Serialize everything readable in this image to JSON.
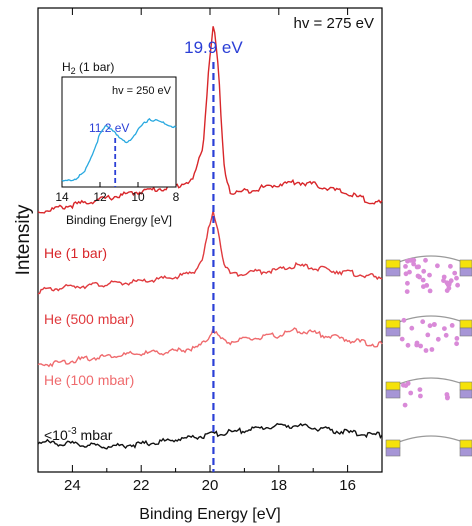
{
  "chart_data": {
    "type": "line",
    "title": "",
    "annotation_top_right": "hv = 275 eV",
    "xlabel": "Binding Energy [eV]",
    "ylabel": "Intensity",
    "xlim": [
      25,
      15
    ],
    "x_ticks": [
      "24",
      "22",
      "20",
      "18",
      "16"
    ],
    "x_tick_values": [
      24,
      22,
      20,
      18,
      16
    ],
    "reversed_x": true,
    "peak_marker": {
      "x": 19.9,
      "label": "19.9 eV",
      "color": "#2b3fd6"
    },
    "series": [
      {
        "name": "He (1 bar)",
        "color": "#d8262a",
        "x": [
          25,
          24,
          23,
          22,
          21,
          20.5,
          20.2,
          20.05,
          19.9,
          19.75,
          19.6,
          19.4,
          19,
          18,
          17.5,
          17,
          16,
          15.2
        ],
        "y": [
          0.56,
          0.575,
          0.59,
          0.605,
          0.615,
          0.63,
          0.7,
          0.86,
          0.97,
          0.86,
          0.66,
          0.6,
          0.605,
          0.62,
          0.625,
          0.62,
          0.6,
          0.58
        ]
      },
      {
        "name": "He (500 mbar)",
        "color": "#e03a3e",
        "x": [
          25,
          24,
          23,
          22,
          21,
          20.5,
          20.2,
          20.05,
          19.9,
          19.75,
          19.6,
          19.4,
          19,
          18,
          17.5,
          17,
          16,
          15.2
        ],
        "y": [
          0.39,
          0.4,
          0.405,
          0.41,
          0.42,
          0.43,
          0.46,
          0.52,
          0.56,
          0.52,
          0.45,
          0.425,
          0.43,
          0.435,
          0.445,
          0.44,
          0.43,
          0.42
        ]
      },
      {
        "name": "He (100 mbar)",
        "color": "#ef6b6e",
        "x": [
          25,
          24,
          23,
          22,
          21,
          20.3,
          20.05,
          19.9,
          19.75,
          19.5,
          19,
          18,
          17.5,
          17,
          16,
          15.2
        ],
        "y": [
          0.23,
          0.24,
          0.25,
          0.255,
          0.26,
          0.27,
          0.29,
          0.31,
          0.29,
          0.28,
          0.285,
          0.295,
          0.305,
          0.3,
          0.285,
          0.275
        ]
      },
      {
        "name": "<10<sup>-3</sup> mbar",
        "label_main": "<10",
        "label_sup": "-3",
        "label_tail": " mbar",
        "color": "#111111",
        "x": [
          25,
          24,
          23,
          22,
          21,
          20,
          19,
          18,
          17.5,
          17,
          16,
          15.2
        ],
        "y": [
          0.065,
          0.06,
          0.055,
          0.06,
          0.07,
          0.08,
          0.09,
          0.1,
          0.1,
          0.095,
          0.085,
          0.08
        ]
      }
    ],
    "inset": {
      "title_main": "H",
      "title_sub": "2",
      "title_tail": " (1 bar)",
      "annotation": "hv = 250 eV",
      "xlabel": "Binding Energy [eV]",
      "xlim": [
        14,
        8
      ],
      "x_ticks": [
        "14",
        "12",
        "10",
        "8"
      ],
      "x_tick_values": [
        14,
        12,
        10,
        8
      ],
      "peak_marker": {
        "x": 11.2,
        "label": "11.2 eV",
        "color": "#2b3fd6"
      },
      "series": {
        "color": "#29a9e0",
        "x": [
          14,
          13.6,
          13.2,
          12.8,
          12.4,
          12,
          11.7,
          11.4,
          11.2,
          11,
          10.6,
          10.2,
          9.8,
          9.4,
          9,
          8.6,
          8.2,
          8
        ],
        "y": [
          0.05,
          0.06,
          0.08,
          0.14,
          0.3,
          0.48,
          0.55,
          0.53,
          0.5,
          0.44,
          0.4,
          0.47,
          0.56,
          0.62,
          0.6,
          0.58,
          0.55,
          0.54
        ]
      }
    }
  },
  "colors": {
    "frame": "#000000",
    "pink": "#d98ad8",
    "yellow": "#f5e20a",
    "purple": "#a695d6",
    "gray": "#9a9a9a"
  }
}
